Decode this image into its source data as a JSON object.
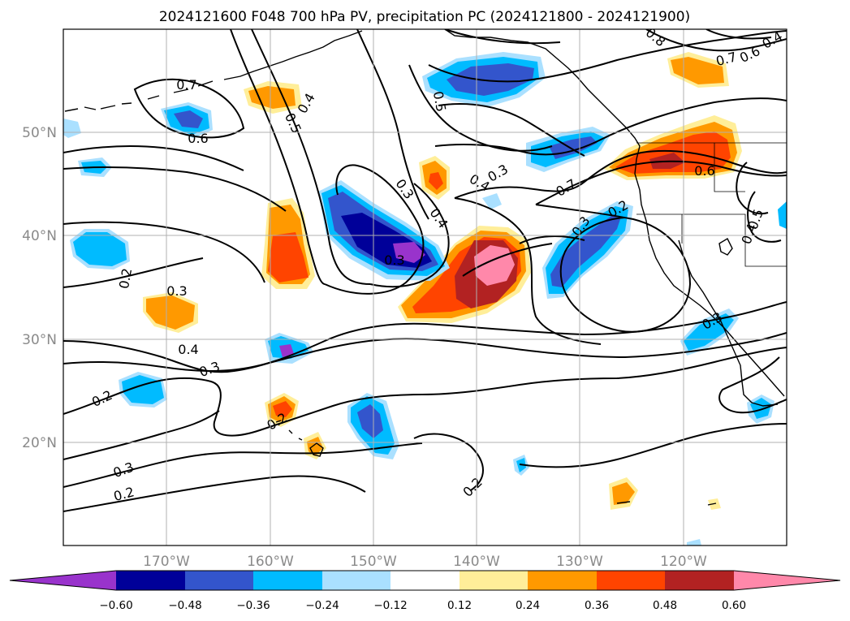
{
  "title": "2024121600 F048 700 hPa PV, precipitation PC (2024121800 - 2024121900)",
  "map": {
    "projection": "PlateCarree",
    "lon_range": [
      -180,
      -110
    ],
    "lat_range": [
      10,
      60
    ],
    "latitude_labels": [
      "50°N",
      "40°N",
      "30°N",
      "20°N"
    ],
    "longitude_labels": [
      "170°W",
      "160°W",
      "150°W",
      "140°W",
      "130°W",
      "120°W"
    ],
    "gridlines": true,
    "coastlines": true
  },
  "colorbar": {
    "orientation": "horizontal",
    "extend": "both",
    "ticks": [
      "−0.60",
      "−0.48",
      "−0.36",
      "−0.24",
      "−0.12",
      "0.12",
      "0.24",
      "0.36",
      "0.48",
      "0.60"
    ],
    "colors": [
      "#9933cc",
      "#000099",
      "#3355cc",
      "#00bbff",
      "#aae0ff",
      "#ffffff",
      "#ffee99",
      "#ff9900",
      "#ff4400",
      "#b22222",
      "#ff88aa",
      "#ff88aa"
    ]
  },
  "contour_labels": [
    "0.7",
    "0.6",
    "0.4",
    "0.5",
    "0.5",
    "0.8",
    "0.7",
    "0.6",
    "0.4",
    "0.2",
    "0.3",
    "0.4",
    "0.3",
    "0.2",
    "0.3",
    "0.2",
    "0.3",
    "0.4",
    "0.3",
    "0.2",
    "0.3",
    "0.4",
    "0.7",
    "0.3",
    "0.2",
    "0.6",
    "0.4",
    "0.5",
    "0.3",
    "0.2"
  ]
}
